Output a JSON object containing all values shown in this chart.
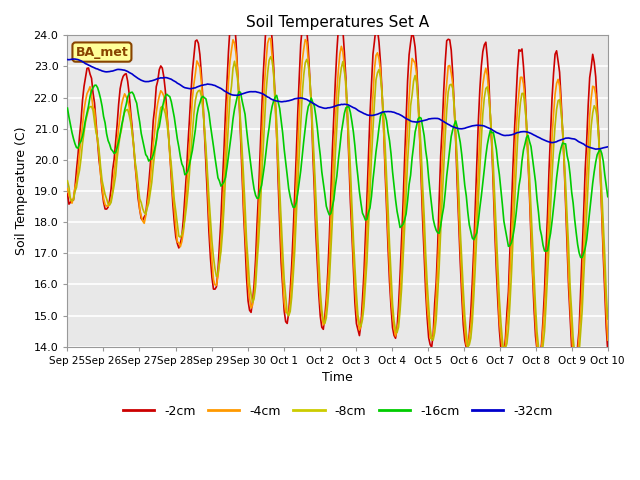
{
  "title": "Soil Temperatures Set A",
  "xlabel": "Time",
  "ylabel": "Soil Temperature (C)",
  "ylim": [
    14.0,
    24.0
  ],
  "yticks": [
    14.0,
    15.0,
    16.0,
    17.0,
    18.0,
    19.0,
    20.0,
    21.0,
    22.0,
    23.0,
    24.0
  ],
  "xtick_labels": [
    "Sep 25",
    "Sep 26",
    "Sep 27",
    "Sep 28",
    "Sep 29",
    "Sep 30",
    "Oct 1",
    "Oct 2",
    "Oct 3",
    "Oct 4",
    "Oct 5",
    "Oct 6",
    "Oct 7",
    "Oct 8",
    "Oct 9",
    "Oct 10"
  ],
  "legend_labels": [
    "-2cm",
    "-4cm",
    "-8cm",
    "-16cm",
    "-32cm"
  ],
  "legend_colors": [
    "#cc0000",
    "#ff9900",
    "#cccc00",
    "#00cc00",
    "#0000cc"
  ],
  "annotation_text": "BA_met",
  "annotation_bg": "#ffff99",
  "annotation_fg": "#884400",
  "annotation_edge": "#884400",
  "plot_bg_color": "#e8e8e8",
  "line_colors": [
    "#cc0000",
    "#ff9900",
    "#bbbb00",
    "#00cc00",
    "#0000cc"
  ],
  "line_width": 1.2,
  "n_days": 15,
  "n_points": 360
}
